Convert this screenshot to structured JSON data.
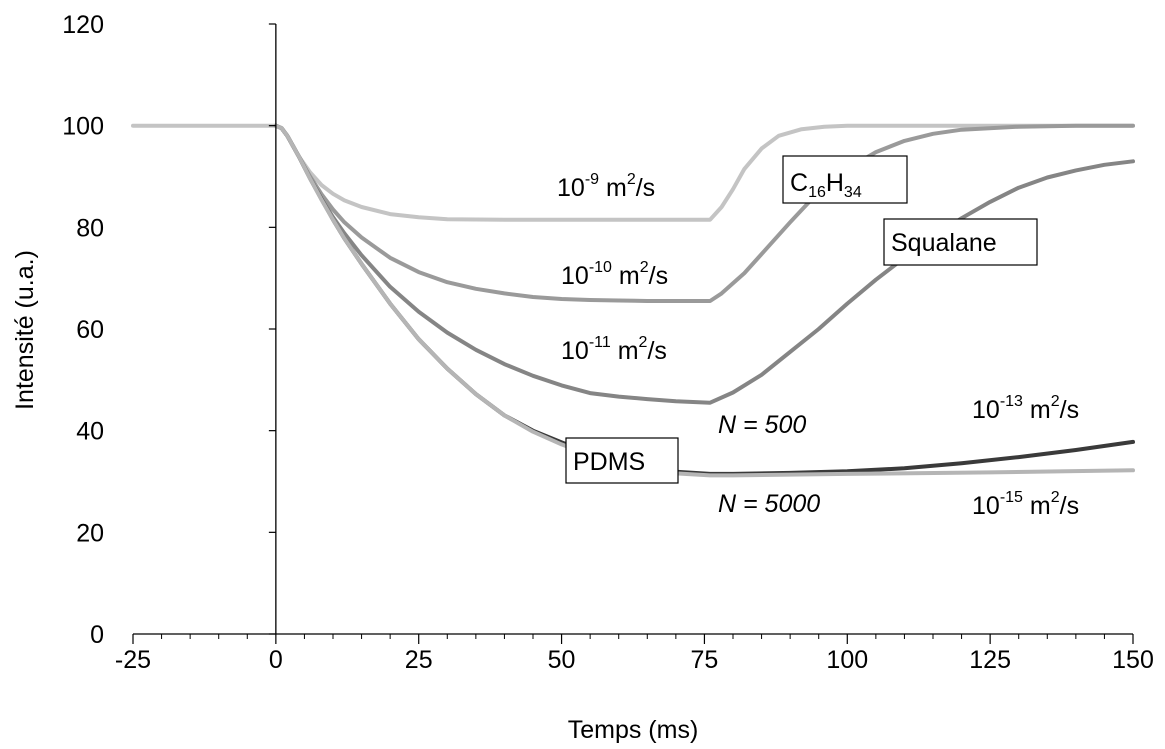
{
  "chart_data": {
    "type": "line",
    "title": "",
    "xlabel": "Temps (ms)",
    "ylabel": "Intensité (u.a.)",
    "xlim": [
      -25,
      150
    ],
    "ylim": [
      0,
      120
    ],
    "xticks": [
      -25,
      0,
      25,
      50,
      75,
      100,
      125,
      150
    ],
    "yticks": [
      0,
      20,
      40,
      60,
      80,
      100,
      120
    ],
    "x_minor_step": 5,
    "grid": false,
    "legend": "none",
    "series": [
      {
        "color": "#c4c4c4",
        "points": [
          [
            -25,
            100
          ],
          [
            0,
            100
          ],
          [
            1,
            99.5
          ],
          [
            2,
            98
          ],
          [
            4,
            94
          ],
          [
            6,
            90.8
          ],
          [
            8,
            88.3
          ],
          [
            10,
            86.6
          ],
          [
            12,
            85.3
          ],
          [
            15,
            84
          ],
          [
            20,
            82.6
          ],
          [
            25,
            82
          ],
          [
            30,
            81.6
          ],
          [
            40,
            81.5
          ],
          [
            50,
            81.5
          ],
          [
            60,
            81.5
          ],
          [
            70,
            81.5
          ],
          [
            76,
            81.5
          ],
          [
            78,
            84
          ],
          [
            80,
            87.5
          ],
          [
            82,
            91.5
          ],
          [
            85,
            95.5
          ],
          [
            88,
            98
          ],
          [
            92,
            99.3
          ],
          [
            96,
            99.8
          ],
          [
            100,
            100
          ],
          [
            125,
            100
          ],
          [
            150,
            100
          ]
        ]
      },
      {
        "color": "#9a9a9a",
        "points": [
          [
            0,
            100
          ],
          [
            1,
            99.5
          ],
          [
            2,
            98
          ],
          [
            4,
            94
          ],
          [
            6,
            90
          ],
          [
            8,
            86.5
          ],
          [
            10,
            83.5
          ],
          [
            12,
            81
          ],
          [
            15,
            78
          ],
          [
            20,
            74
          ],
          [
            25,
            71.2
          ],
          [
            30,
            69.2
          ],
          [
            35,
            67.9
          ],
          [
            40,
            67
          ],
          [
            45,
            66.3
          ],
          [
            50,
            65.9
          ],
          [
            55,
            65.7
          ],
          [
            60,
            65.6
          ],
          [
            65,
            65.5
          ],
          [
            70,
            65.5
          ],
          [
            76,
            65.5
          ],
          [
            78,
            67
          ],
          [
            82,
            71
          ],
          [
            86,
            76
          ],
          [
            90,
            81
          ],
          [
            95,
            87
          ],
          [
            100,
            91.5
          ],
          [
            105,
            94.8
          ],
          [
            110,
            97
          ],
          [
            115,
            98.4
          ],
          [
            120,
            99.2
          ],
          [
            130,
            99.8
          ],
          [
            140,
            100
          ],
          [
            150,
            100
          ]
        ]
      },
      {
        "color": "#858585",
        "points": [
          [
            0,
            100
          ],
          [
            1,
            99.5
          ],
          [
            2,
            98
          ],
          [
            4,
            94
          ],
          [
            6,
            89.7
          ],
          [
            8,
            85.6
          ],
          [
            10,
            82
          ],
          [
            12,
            78.8
          ],
          [
            15,
            74.5
          ],
          [
            20,
            68.3
          ],
          [
            25,
            63.4
          ],
          [
            30,
            59.3
          ],
          [
            35,
            55.9
          ],
          [
            40,
            53.1
          ],
          [
            45,
            50.8
          ],
          [
            50,
            48.9
          ],
          [
            55,
            47.4
          ],
          [
            60,
            46.7
          ],
          [
            65,
            46.2
          ],
          [
            70,
            45.8
          ],
          [
            76,
            45.5
          ],
          [
            80,
            47.5
          ],
          [
            85,
            51
          ],
          [
            90,
            55.5
          ],
          [
            95,
            60
          ],
          [
            100,
            65
          ],
          [
            105,
            69.7
          ],
          [
            110,
            74
          ],
          [
            115,
            78
          ],
          [
            120,
            81.8
          ],
          [
            125,
            85
          ],
          [
            130,
            87.8
          ],
          [
            135,
            89.8
          ],
          [
            140,
            91.2
          ],
          [
            145,
            92.3
          ],
          [
            150,
            93
          ]
        ]
      },
      {
        "color": "#3a3a3a",
        "points": [
          [
            0,
            100
          ],
          [
            1,
            99.5
          ],
          [
            2,
            98
          ],
          [
            4,
            94
          ],
          [
            6,
            89.6
          ],
          [
            8,
            85.5
          ],
          [
            10,
            81.5
          ],
          [
            12,
            77.8
          ],
          [
            15,
            72.8
          ],
          [
            20,
            65
          ],
          [
            25,
            58
          ],
          [
            30,
            52.2
          ],
          [
            35,
            47.2
          ],
          [
            40,
            43
          ],
          [
            45,
            40
          ],
          [
            50,
            37.7
          ],
          [
            55,
            35.5
          ],
          [
            60,
            33.8
          ],
          [
            65,
            32.6
          ],
          [
            70,
            31.9
          ],
          [
            76,
            31.5
          ],
          [
            80,
            31.5
          ],
          [
            90,
            31.7
          ],
          [
            100,
            32
          ],
          [
            110,
            32.6
          ],
          [
            120,
            33.6
          ],
          [
            130,
            34.8
          ],
          [
            140,
            36.2
          ],
          [
            150,
            37.8
          ]
        ]
      },
      {
        "color": "#b5b5b5",
        "points": [
          [
            0,
            100
          ],
          [
            1,
            99.5
          ],
          [
            2,
            98
          ],
          [
            4,
            94
          ],
          [
            6,
            89.6
          ],
          [
            8,
            85.4
          ],
          [
            10,
            81.5
          ],
          [
            12,
            77.8
          ],
          [
            15,
            72.8
          ],
          [
            20,
            65
          ],
          [
            25,
            58
          ],
          [
            30,
            52.2
          ],
          [
            35,
            47.2
          ],
          [
            40,
            43
          ],
          [
            45,
            39.8
          ],
          [
            50,
            37.3
          ],
          [
            55,
            35.2
          ],
          [
            60,
            33.6
          ],
          [
            65,
            32.4
          ],
          [
            70,
            31.6
          ],
          [
            76,
            31.2
          ],
          [
            80,
            31.2
          ],
          [
            100,
            31.5
          ],
          [
            125,
            31.8
          ],
          [
            150,
            32.2
          ]
        ]
      }
    ],
    "annotations": [
      {
        "base": "10",
        "exp": "-9",
        "unit_pre": " m",
        "unit_exp": "2",
        "unit_post": "/s"
      },
      {
        "base": "10",
        "exp": "-10",
        "unit_pre": " m",
        "unit_exp": "2",
        "unit_post": "/s"
      },
      {
        "base": "10",
        "exp": "-11",
        "unit_pre": " m",
        "unit_exp": "2",
        "unit_post": "/s"
      },
      {
        "base": "10",
        "exp": "-13",
        "unit_pre": " m",
        "unit_exp": "2",
        "unit_post": "/s"
      },
      {
        "base": "10",
        "exp": "-15",
        "unit_pre": " m",
        "unit_exp": "2",
        "unit_post": "/s"
      }
    ],
    "italic_labels": [
      "N = 500",
      "N = 5000"
    ],
    "boxed_labels": {
      "c16h34": {
        "c1": "C",
        "s1": "16",
        "c2": "H",
        "s2": "34"
      },
      "squalane": "Squalane",
      "pdms": "PDMS"
    }
  }
}
